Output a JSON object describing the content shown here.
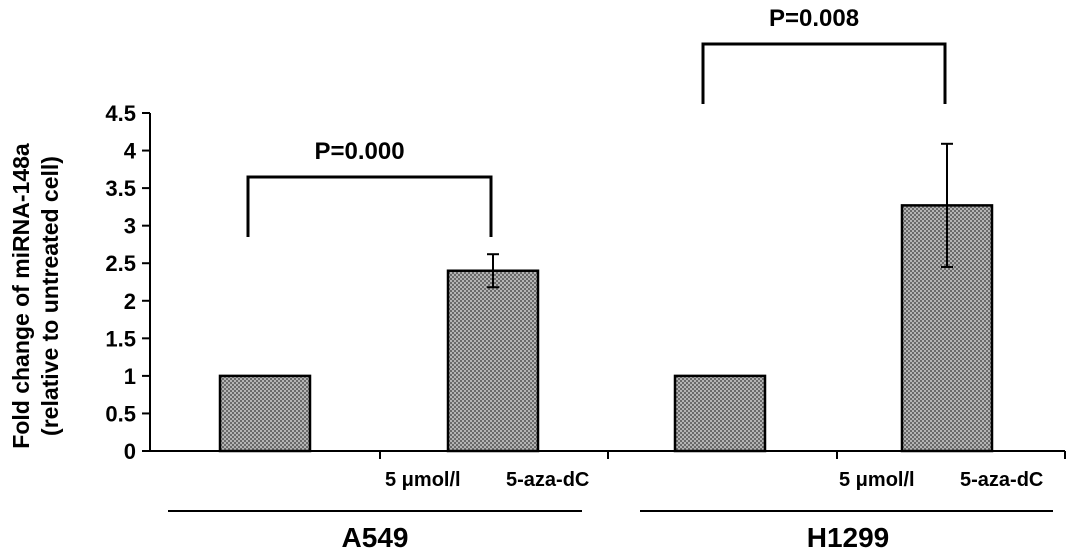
{
  "chart_data": {
    "type": "bar",
    "ylabel_line1": "Fold change of miRNA-148a",
    "ylabel_line2": "(relative to untreated cell)",
    "ylim": [
      0,
      4.5
    ],
    "yticks": [
      "0",
      "0.5",
      "1",
      "1.5",
      "2",
      "2.5",
      "3",
      "3.5",
      "4",
      "4.5"
    ],
    "treatment_label_dose": "5 μmol/l",
    "treatment_label_drug": "5-aza-dC",
    "groups": [
      {
        "name": "A549",
        "values": [
          1,
          2.4
        ],
        "errors": [
          0,
          0.22
        ],
        "p_value": "P=0.000"
      },
      {
        "name": "H1299",
        "values": [
          1,
          3.27
        ],
        "errors": [
          0,
          0.82
        ],
        "p_value": "P=0.008"
      }
    ],
    "bar_color": "#9a9a9a",
    "grid": false,
    "legend": "none"
  }
}
